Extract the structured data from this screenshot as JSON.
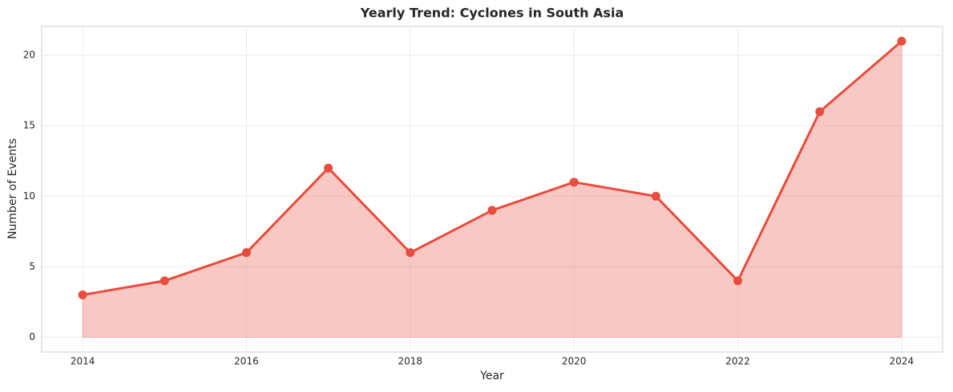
{
  "chart_data": {
    "type": "line",
    "title": "Yearly Trend: Cyclones in South Asia",
    "xlabel": "Year",
    "ylabel": "Number of Events",
    "x": [
      2014,
      2015,
      2016,
      2017,
      2018,
      2019,
      2020,
      2021,
      2022,
      2023,
      2024
    ],
    "values": [
      3,
      4,
      6,
      12,
      6,
      9,
      11,
      10,
      4,
      16,
      21
    ],
    "color": "#e74c3c",
    "fill_area": true,
    "xlim": [
      2013.5,
      2024.5
    ],
    "xticks": [
      2014,
      2016,
      2018,
      2020,
      2022,
      2024
    ],
    "ylim": [
      -1.05,
      22.05
    ],
    "yticks": [
      0,
      5,
      10,
      15,
      20
    ],
    "grid": true
  }
}
